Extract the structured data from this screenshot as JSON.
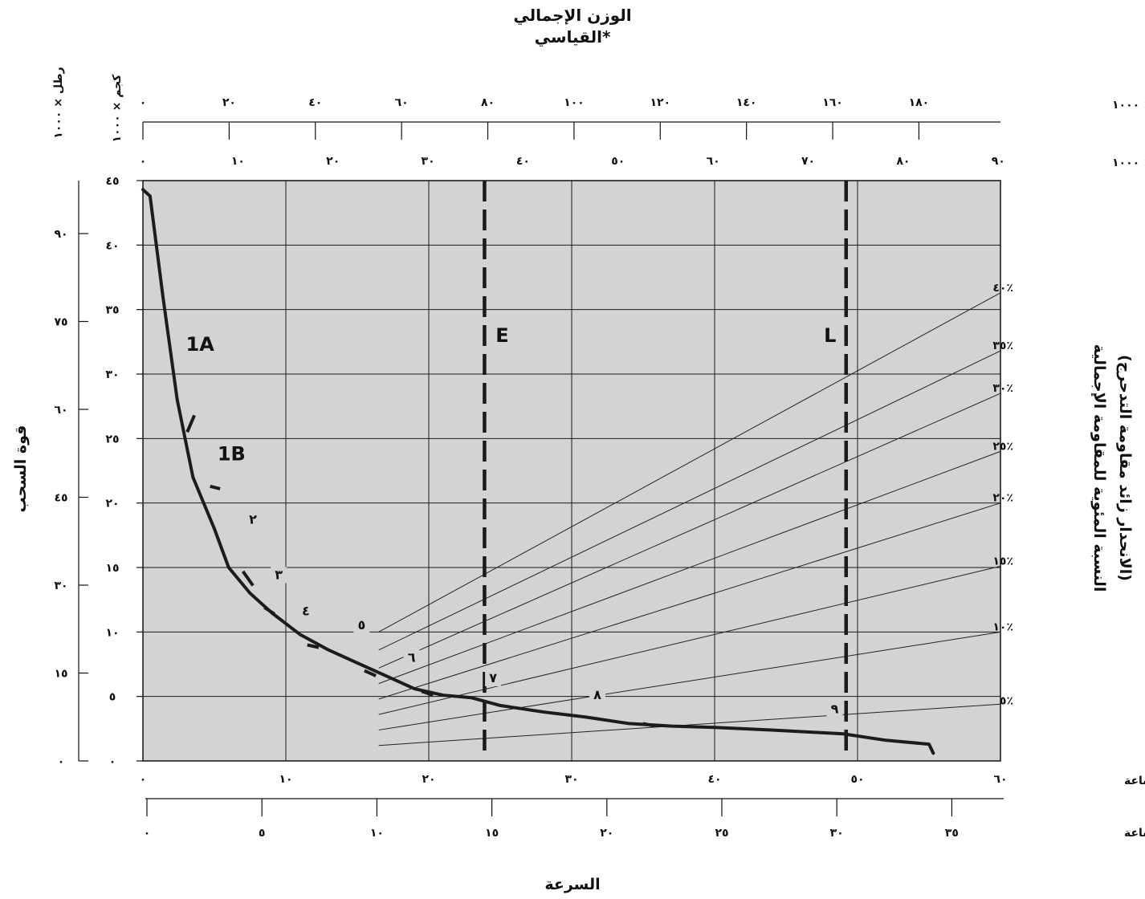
{
  "chart_data": {
    "type": "line",
    "title": "الوزن الإجمالي",
    "subtitle": "القياسي*",
    "top_axes": {
      "lb": {
        "label": "رطل × ١٠٠٠",
        "side_label": "رطل × ١٠٠٠",
        "ticks": [
          "٠",
          "٢٠",
          "٤٠",
          "٦٠",
          "٨٠",
          "١٠٠",
          "١٢٠",
          "١٤٠",
          "١٦٠",
          "١٨٠"
        ],
        "values": [
          0,
          20,
          40,
          60,
          80,
          100,
          120,
          140,
          160,
          180
        ]
      },
      "kg": {
        "label": "كجم × ١٠٠٠",
        "side_label": "كجم × ١٠٠٠",
        "ticks": [
          "٠",
          "١٠",
          "٢٠",
          "٣٠",
          "٤٠",
          "٥٠",
          "٦٠",
          "٧٠",
          "٨٠",
          "٩٠"
        ],
        "values": [
          0,
          10,
          20,
          30,
          40,
          50,
          60,
          70,
          80,
          90
        ]
      }
    },
    "y_left_outer": {
      "label": "قوة السحب",
      "ticks": [
        "٠",
        "١٥",
        "٣٠",
        "٤٥",
        "٦٠",
        "٧٥",
        "٩٠"
      ],
      "values": [
        0,
        15,
        30,
        45,
        60,
        75,
        90
      ]
    },
    "y_left_inner": {
      "ticks": [
        "٠",
        "٥",
        "١٠",
        "١٥",
        "٢٠",
        "٢٥",
        "٣٠",
        "٣٥",
        "٤٠",
        "٤٥"
      ],
      "values": [
        0,
        5,
        10,
        15,
        20,
        25,
        30,
        35,
        40,
        45
      ],
      "ylim": [
        0,
        45
      ]
    },
    "x_bottom_kmh": {
      "label": "كم/ساعة",
      "ticks": [
        "٠",
        "١٠",
        "٢٠",
        "٣٠",
        "٤٠",
        "٥٠",
        "٦٠"
      ],
      "values": [
        0,
        10,
        20,
        30,
        40,
        50,
        60
      ],
      "xlim": [
        0,
        60
      ]
    },
    "x_bottom_mph": {
      "label": "ميل في الساعة",
      "ticks": [
        "٠",
        "٥",
        "١٠",
        "١٥",
        "٢٠",
        "٢٥",
        "٣٠",
        "٣٥"
      ],
      "values": [
        0,
        5,
        10,
        15,
        20,
        25,
        30,
        35
      ]
    },
    "xlabel": "السرعة",
    "right_axis": {
      "label_line1": "النسبة المئوية للمقاومة الإجمالية",
      "label_line2": "(الانحدار زائد مقاومة التدحرج)",
      "grade_labels": [
        "٪٥",
        "٪١٠",
        "٪١٥",
        "٪٢٠",
        "٪٢٥",
        "٪٣٠",
        "٪٣٥",
        "٪٤٠"
      ]
    },
    "vertical_lines": [
      {
        "name": "E",
        "x_kmh": 23.9
      },
      {
        "name": "L",
        "x_kmh": 49.2
      }
    ],
    "segment_labels": [
      "1A",
      "1B",
      "٢",
      "٣",
      "٤",
      "٥",
      "٦",
      "٧",
      "٨",
      "٩"
    ],
    "curve_kmh_vs_pull": [
      [
        0,
        44.3
      ],
      [
        0.5,
        43.8
      ],
      [
        1.4,
        36
      ],
      [
        2.4,
        28
      ],
      [
        3.5,
        22
      ],
      [
        5,
        18
      ],
      [
        6,
        15
      ],
      [
        7.5,
        13
      ],
      [
        9,
        11.5
      ],
      [
        11,
        9.8
      ],
      [
        13,
        8.6
      ],
      [
        15,
        7.6
      ],
      [
        17,
        6.6
      ],
      [
        19,
        5.6
      ],
      [
        21,
        5.1
      ],
      [
        23,
        4.9
      ],
      [
        25,
        4.3
      ],
      [
        28,
        3.8
      ],
      [
        31,
        3.4
      ],
      [
        34,
        2.9
      ],
      [
        37,
        2.7
      ],
      [
        40,
        2.6
      ],
      [
        44,
        2.4
      ],
      [
        49,
        2.1
      ],
      [
        52,
        1.6
      ],
      [
        55,
        1.3
      ],
      [
        55.3,
        0.6
      ]
    ],
    "resistance_lines": [
      {
        "label": "٪٥",
        "start": [
          16.5,
          1.2
        ],
        "end": [
          60,
          4.4
        ]
      },
      {
        "label": "٪١٠",
        "start": [
          16.5,
          2.4
        ],
        "end": [
          60,
          10.0
        ]
      },
      {
        "label": "٪١٥",
        "start": [
          16.5,
          3.6
        ],
        "end": [
          60,
          15.1
        ]
      },
      {
        "label": "٪٢٠",
        "start": [
          16.5,
          4.8
        ],
        "end": [
          60,
          20.0
        ]
      },
      {
        "label": "٪٢٥",
        "start": [
          16.5,
          6.0
        ],
        "end": [
          60,
          24.0
        ]
      },
      {
        "label": "٪٣٠",
        "start": [
          16.5,
          7.2
        ],
        "end": [
          60,
          28.5
        ]
      },
      {
        "label": "٪٣٥",
        "start": [
          16.5,
          8.6
        ],
        "end": [
          60,
          31.8
        ]
      },
      {
        "label": "٪٤٠",
        "start": [
          16.5,
          10.0
        ],
        "end": [
          60,
          36.3
        ]
      }
    ],
    "grid": true,
    "colors": {
      "plot_bg": "#d1d3d4",
      "grid": "#1a1a1a",
      "curve": "#1c1c1c"
    }
  }
}
